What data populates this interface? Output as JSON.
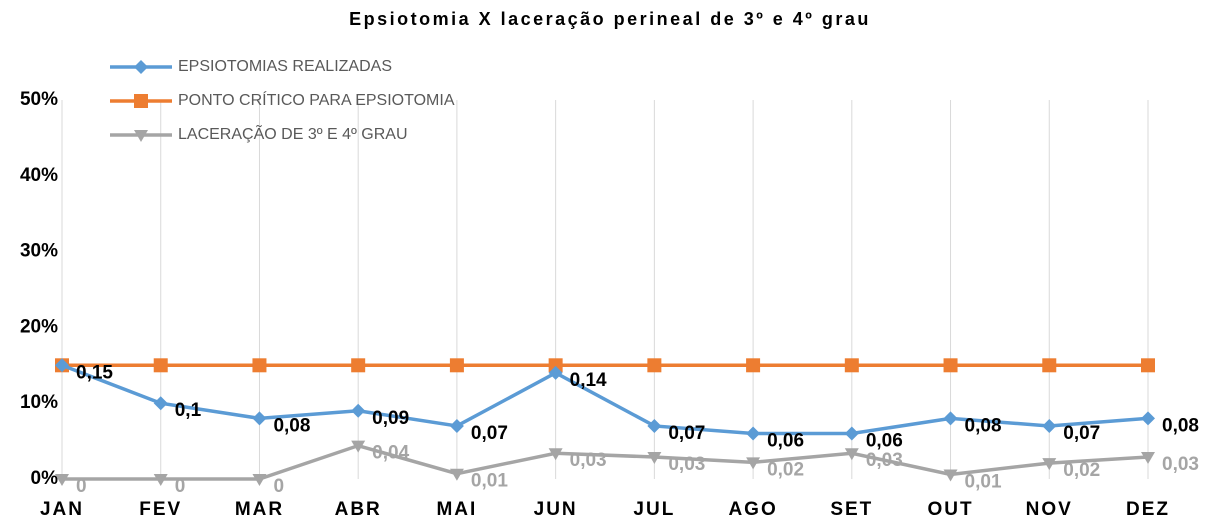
{
  "chart_data": {
    "type": "line",
    "title": "Epsiotomia X laceração perineal de 3º e 4º grau",
    "categories": [
      "JAN",
      "FEV",
      "MAR",
      "ABR",
      "MAI",
      "JUN",
      "JUL",
      "AGO",
      "SET",
      "OUT",
      "NOV",
      "DEZ"
    ],
    "series": [
      {
        "name": "EPSIOTOMIAS REALIZADAS",
        "color": "#5b9bd5",
        "marker": "diamond",
        "values": [
          0.15,
          0.1,
          0.08,
          0.09,
          0.07,
          0.14,
          0.07,
          0.06,
          0.06,
          0.08,
          0.07,
          0.08
        ],
        "value_labels": [
          "0,15",
          "0,1",
          "0,08",
          "0,09",
          "0,07",
          "0,14",
          "0,07",
          "0,06",
          "0,06",
          "0,08",
          "0,07",
          "0,08"
        ],
        "label_color": "#000000"
      },
      {
        "name": "PONTO CRÍTICO PARA EPSIOTOMIA",
        "color": "#ed7d31",
        "marker": "square",
        "values": [
          0.15,
          0.15,
          0.15,
          0.15,
          0.15,
          0.15,
          0.15,
          0.15,
          0.15,
          0.15,
          0.15,
          0.15
        ]
      },
      {
        "name": "LACERAÇÃO DE 3º E 4º GRAU",
        "color": "#a5a5a5",
        "marker": "triangle-down",
        "values": [
          0,
          0,
          0,
          0.044,
          0.007,
          0.034,
          0.029,
          0.022,
          0.034,
          0.006,
          0.021,
          0.029
        ],
        "value_labels": [
          "0",
          "0",
          "0",
          "0,04",
          "0,01",
          "0,03",
          "0,03",
          "0,02",
          "0,03",
          "0,01",
          "0,02",
          "0,03"
        ],
        "label_color": "#a5a5a5"
      }
    ],
    "ylim": [
      0,
      0.5
    ],
    "yticks": [
      {
        "value": 0,
        "label": "0%"
      },
      {
        "value": 0.1,
        "label": "10%"
      },
      {
        "value": 0.2,
        "label": "20%"
      },
      {
        "value": 0.3,
        "label": "30%"
      },
      {
        "value": 0.4,
        "label": "40%"
      },
      {
        "value": 0.5,
        "label": "50%"
      }
    ],
    "grid": "x"
  }
}
